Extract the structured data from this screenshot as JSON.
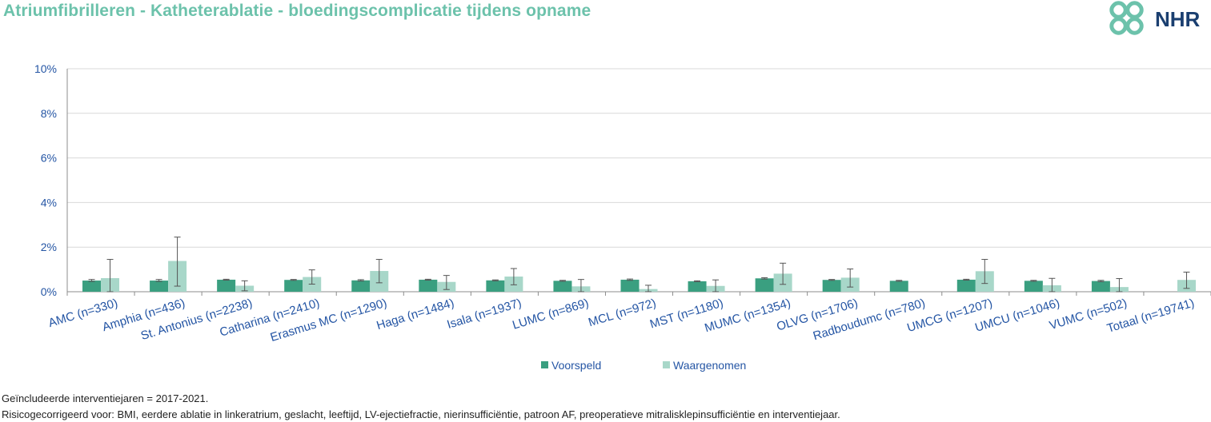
{
  "header": {
    "title": "Atriumfibrilleren - Katheterablatie - bloedingscomplicatie tijdens opname",
    "logo_text": "NHR"
  },
  "colors": {
    "title": "#6cc2ab",
    "voorspeld": "#3a9f80",
    "waargenomen": "#a8d7c9",
    "axis_text": "#2455a4",
    "logo_mark": "#6cc2ab",
    "logo_text": "#1b3f70"
  },
  "chart_data": {
    "type": "bar",
    "categories": [
      "AMC (n=330)",
      "Amphia (n=436)",
      "St. Antonius (n=2238)",
      "Catharina (n=2410)",
      "Erasmus MC (n=1290)",
      "Haga (n=1484)",
      "Isala (n=1937)",
      "LUMC (n=869)",
      "MCL (n=972)",
      "MST (n=1180)",
      "MUMC (n=1354)",
      "OLVG (n=1706)",
      "Radboudumc (n=780)",
      "UMCG (n=1207)",
      "UMCU (n=1046)",
      "VUMC (n=502)",
      "Totaal (n=19741)"
    ],
    "series": [
      {
        "name": "Voorspeld",
        "values": [
          0.5,
          0.5,
          0.54,
          0.53,
          0.51,
          0.54,
          0.51,
          0.49,
          0.54,
          0.47,
          0.6,
          0.53,
          0.49,
          0.54,
          0.49,
          0.48,
          null
        ],
        "error_low": [
          0.46,
          0.46,
          0.52,
          0.51,
          0.48,
          0.52,
          0.49,
          0.47,
          0.51,
          0.45,
          0.57,
          0.51,
          0.47,
          0.52,
          0.47,
          0.45,
          null
        ],
        "error_high": [
          0.55,
          0.55,
          0.56,
          0.55,
          0.54,
          0.56,
          0.53,
          0.51,
          0.57,
          0.49,
          0.63,
          0.55,
          0.51,
          0.56,
          0.51,
          0.51,
          null
        ]
      },
      {
        "name": "Waargenomen",
        "values": [
          0.61,
          1.38,
          0.27,
          0.66,
          0.93,
          0.44,
          0.68,
          0.24,
          0.12,
          0.26,
          0.81,
          0.63,
          null,
          0.92,
          0.29,
          0.21,
          0.53
        ],
        "error_low": [
          0.0,
          0.25,
          0.04,
          0.34,
          0.4,
          0.1,
          0.31,
          0.0,
          0.0,
          0.0,
          0.33,
          0.21,
          null,
          0.37,
          0.0,
          0.0,
          0.15
        ],
        "error_high": [
          1.45,
          2.45,
          0.49,
          0.98,
          1.45,
          0.73,
          1.04,
          0.55,
          0.29,
          0.53,
          1.28,
          1.02,
          null,
          1.45,
          0.6,
          0.59,
          0.88
        ]
      }
    ],
    "ylim": [
      0,
      10
    ],
    "yticks": [
      "0%",
      "2%",
      "4%",
      "6%",
      "8%",
      "10%"
    ],
    "ytick_values": [
      0,
      2,
      4,
      6,
      8,
      10
    ],
    "grid": true,
    "legend_position": "bottom-center",
    "unit": "%"
  },
  "footnotes": [
    "Geïncludeerde interventiejaren = 2017-2021.",
    "Risicogecorrigeerd voor: BMI, eerdere ablatie in linkeratrium, geslacht, leeftijd, LV-ejectiefractie, nierinsufficiëntie, patroon AF, preoperatieve mitralisklepinsufficiëntie en interventiejaar."
  ]
}
